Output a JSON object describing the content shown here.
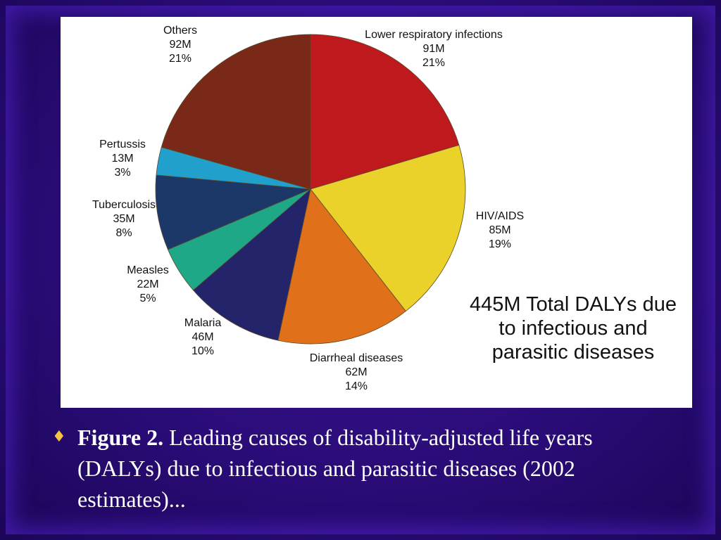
{
  "chart_data": {
    "type": "pie",
    "title": "",
    "note_lines": [
      "445M Total DALYs due",
      "to infectious and",
      "parasitic diseases"
    ],
    "start_angle_deg": 0,
    "direction": "clockwise",
    "slices": [
      {
        "label": "Lower respiratory infections",
        "value_text": "91M",
        "value": 91,
        "percent_text": "21%",
        "color": "#be1a1e"
      },
      {
        "label": "HIV/AIDS",
        "value_text": "85M",
        "value": 85,
        "percent_text": "19%",
        "color": "#ebd22a"
      },
      {
        "label": "Diarrheal diseases",
        "value_text": "62M",
        "value": 62,
        "percent_text": "14%",
        "color": "#e1701a"
      },
      {
        "label": "Malaria",
        "value_text": "46M",
        "value": 46,
        "percent_text": "10%",
        "color": "#24246a"
      },
      {
        "label": "Measles",
        "value_text": "22M",
        "value": 22,
        "percent_text": "5%",
        "color": "#1fa888"
      },
      {
        "label": "Tuberculosis",
        "value_text": "35M",
        "value": 35,
        "percent_text": "8%",
        "color": "#1c3868"
      },
      {
        "label": "Pertussis",
        "value_text": "13M",
        "value": 13,
        "percent_text": "3%",
        "color": "#22a0cc"
      },
      {
        "label": "Others",
        "value_text": "92M",
        "value": 92,
        "percent_text": "21%",
        "color": "#7a2818"
      }
    ]
  },
  "caption": {
    "bullet": "♦",
    "figure_label": "Figure 2.",
    "text": "Leading causes of disability-adjusted life years (DALYs) due to infectious and parasitic diseases (2002 estimates)..."
  },
  "colors": {
    "background": "#2a0c78",
    "panel": "#ffffff",
    "caption_text": "#ffffff"
  }
}
